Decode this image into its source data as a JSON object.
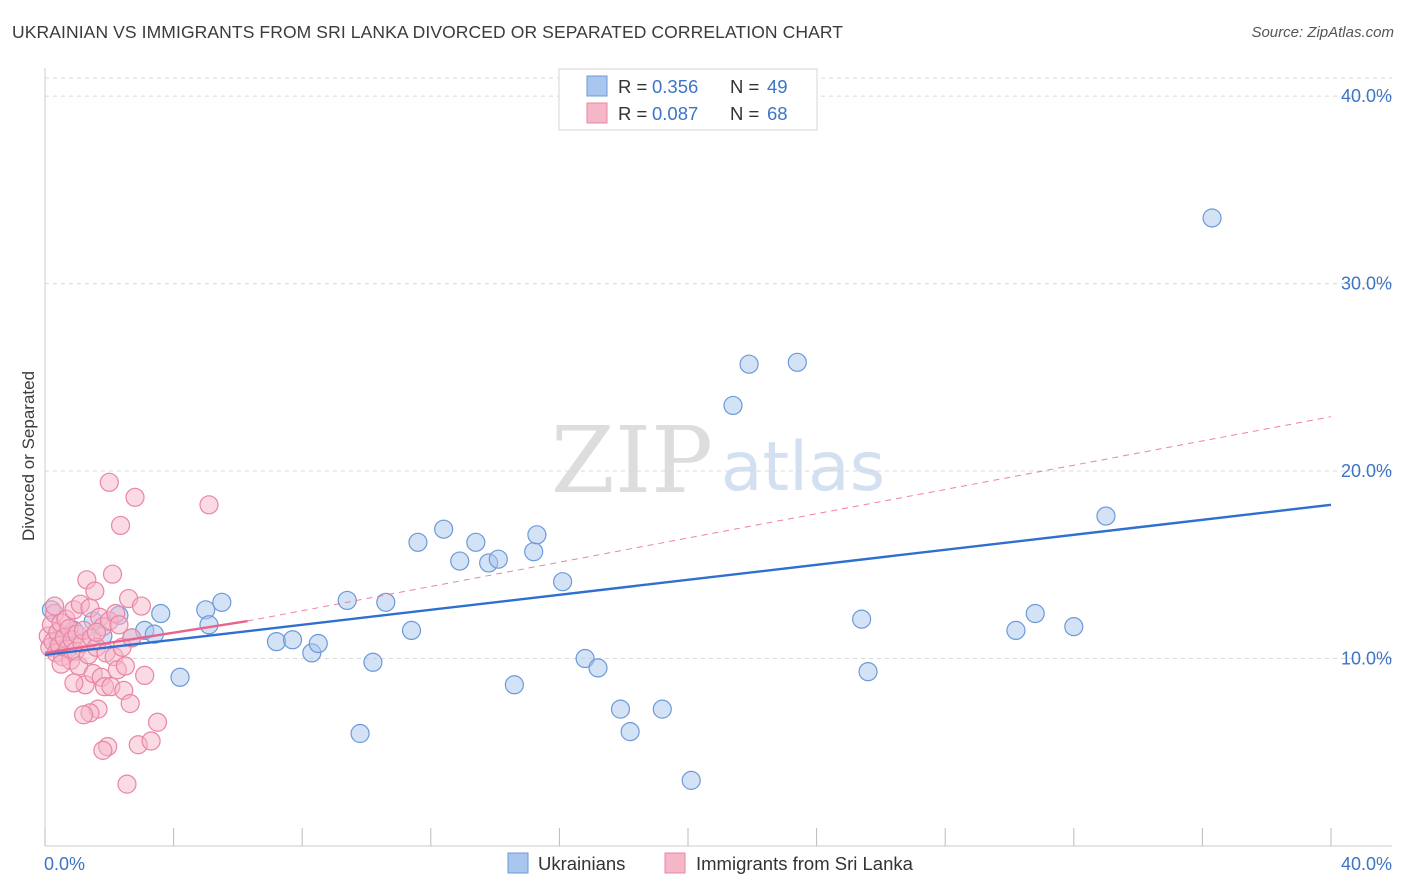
{
  "title": "UKRAINIAN VS IMMIGRANTS FROM SRI LANKA DIVORCED OR SEPARATED CORRELATION CHART",
  "source": "Source: ZipAtlas.com",
  "watermark": {
    "zip": "ZIP",
    "atlas": "atlas"
  },
  "colors": {
    "blue_fill": "#a9c6ee",
    "blue_stroke": "#6b9ad8",
    "blue_line": "#2f6fd0",
    "pink_fill": "#f5b6c8",
    "pink_stroke": "#e985a6",
    "pink_line": "#e8648e",
    "tick_text": "#3d74c6",
    "grid": "#d8d8d8"
  },
  "chart_data": {
    "type": "scatter",
    "title": "UKRAINIAN VS IMMIGRANTS FROM SRI LANKA DIVORCED OR SEPARATED CORRELATION CHART",
    "xlabel": "",
    "ylabel": "Divorced or Separated",
    "xlim": [
      0,
      40
    ],
    "ylim": [
      0,
      41.5
    ],
    "x_tick_labels": [
      "0.0%",
      "40.0%"
    ],
    "y_ticks": [
      10,
      20,
      30,
      40
    ],
    "y_tick_labels": [
      "10.0%",
      "20.0%",
      "30.0%",
      "40.0%"
    ],
    "legend": [
      {
        "label": "R = ",
        "r": "0.356",
        "n_label": "N = ",
        "n": "49"
      },
      {
        "label": "R = ",
        "r": "0.087",
        "n_label": "N = ",
        "n": "68"
      }
    ],
    "series": [
      {
        "name": "Ukrainians",
        "color": "blue",
        "trend": {
          "x": [
            0,
            40
          ],
          "y": [
            10.2,
            18.2
          ],
          "style": "solid"
        },
        "points": [
          [
            0.2,
            12.6
          ],
          [
            0.9,
            11.5
          ],
          [
            1.5,
            12.0
          ],
          [
            1.8,
            11.2
          ],
          [
            2.3,
            12.3
          ],
          [
            2.7,
            11.1
          ],
          [
            3.1,
            11.5
          ],
          [
            3.4,
            11.3
          ],
          [
            3.6,
            12.4
          ],
          [
            4.2,
            9.0
          ],
          [
            5.0,
            12.6
          ],
          [
            5.1,
            11.8
          ],
          [
            5.5,
            13.0
          ],
          [
            7.2,
            10.9
          ],
          [
            7.7,
            11.0
          ],
          [
            8.3,
            10.3
          ],
          [
            8.5,
            10.8
          ],
          [
            9.4,
            13.1
          ],
          [
            10.2,
            9.8
          ],
          [
            10.6,
            13.0
          ],
          [
            11.4,
            11.5
          ],
          [
            11.6,
            16.2
          ],
          [
            12.4,
            16.9
          ],
          [
            12.9,
            15.2
          ],
          [
            13.4,
            16.2
          ],
          [
            13.8,
            15.1
          ],
          [
            14.1,
            15.3
          ],
          [
            14.6,
            8.6
          ],
          [
            15.2,
            15.7
          ],
          [
            15.3,
            16.6
          ],
          [
            16.1,
            14.1
          ],
          [
            16.8,
            10.0
          ],
          [
            17.2,
            9.5
          ],
          [
            17.9,
            7.3
          ],
          [
            18.2,
            6.1
          ],
          [
            19.2,
            7.3
          ],
          [
            20.1,
            3.5
          ],
          [
            21.4,
            23.5
          ],
          [
            21.9,
            25.7
          ],
          [
            23.4,
            25.8
          ],
          [
            25.4,
            12.1
          ],
          [
            25.6,
            9.3
          ],
          [
            30.2,
            11.5
          ],
          [
            30.8,
            12.4
          ],
          [
            32.0,
            11.7
          ],
          [
            33.0,
            17.6
          ],
          [
            36.3,
            33.5
          ],
          [
            9.8,
            6.0
          ],
          [
            0.4,
            11.0
          ]
        ]
      },
      {
        "name": "Immigrants from Sri Lanka",
        "color": "pink",
        "trend": {
          "x": [
            0,
            6.3
          ],
          "y": [
            10.3,
            12.0
          ],
          "style": "solid",
          "ext_x": [
            6.3,
            40
          ],
          "ext_y": [
            12.0,
            22.9
          ],
          "ext_style": "dashed"
        },
        "points": [
          [
            0.1,
            11.2
          ],
          [
            0.15,
            10.6
          ],
          [
            0.2,
            11.8
          ],
          [
            0.25,
            10.9
          ],
          [
            0.3,
            12.4
          ],
          [
            0.35,
            10.3
          ],
          [
            0.4,
            11.4
          ],
          [
            0.45,
            10.7
          ],
          [
            0.5,
            11.9
          ],
          [
            0.55,
            10.1
          ],
          [
            0.6,
            11.1
          ],
          [
            0.65,
            12.1
          ],
          [
            0.7,
            10.5
          ],
          [
            0.75,
            11.6
          ],
          [
            0.8,
            9.9
          ],
          [
            0.85,
            11.0
          ],
          [
            0.9,
            12.6
          ],
          [
            0.95,
            10.4
          ],
          [
            1.0,
            11.3
          ],
          [
            1.05,
            9.6
          ],
          [
            1.1,
            12.9
          ],
          [
            1.15,
            10.8
          ],
          [
            1.2,
            11.5
          ],
          [
            1.25,
            8.6
          ],
          [
            1.3,
            14.2
          ],
          [
            1.35,
            10.2
          ],
          [
            1.4,
            12.7
          ],
          [
            1.45,
            11.1
          ],
          [
            1.5,
            9.2
          ],
          [
            1.55,
            13.6
          ],
          [
            1.6,
            10.6
          ],
          [
            1.65,
            7.3
          ],
          [
            1.7,
            12.2
          ],
          [
            1.75,
            9.0
          ],
          [
            1.8,
            11.7
          ],
          [
            1.85,
            8.5
          ],
          [
            1.9,
            10.3
          ],
          [
            1.95,
            5.3
          ],
          [
            2.0,
            12.0
          ],
          [
            2.05,
            8.5
          ],
          [
            2.1,
            14.5
          ],
          [
            2.15,
            10.1
          ],
          [
            2.2,
            12.4
          ],
          [
            2.25,
            9.4
          ],
          [
            2.3,
            11.8
          ],
          [
            2.35,
            17.1
          ],
          [
            2.4,
            10.6
          ],
          [
            2.45,
            8.3
          ],
          [
            2.5,
            9.6
          ],
          [
            2.55,
            3.3
          ],
          [
            2.6,
            13.2
          ],
          [
            2.65,
            7.6
          ],
          [
            2.7,
            11.1
          ],
          [
            2.8,
            18.6
          ],
          [
            2.9,
            5.4
          ],
          [
            3.0,
            12.8
          ],
          [
            3.1,
            9.1
          ],
          [
            3.3,
            5.6
          ],
          [
            3.5,
            6.6
          ],
          [
            5.1,
            18.2
          ],
          [
            1.4,
            7.1
          ],
          [
            1.8,
            5.1
          ],
          [
            2.0,
            19.4
          ],
          [
            0.5,
            9.7
          ],
          [
            0.9,
            8.7
          ],
          [
            1.2,
            7.0
          ],
          [
            0.3,
            12.8
          ],
          [
            1.6,
            11.4
          ]
        ]
      }
    ]
  }
}
